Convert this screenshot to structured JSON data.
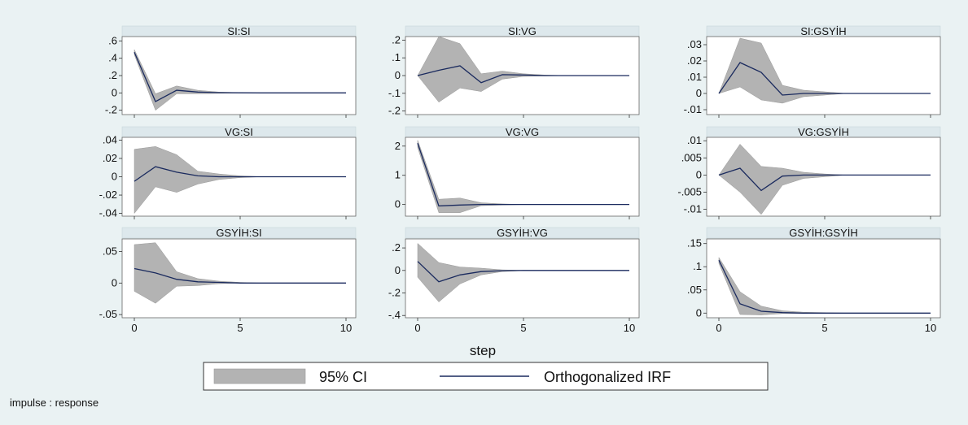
{
  "chart_data": {
    "type": "line",
    "xlabel": "step",
    "note": "impulse : response",
    "legend": {
      "position": "bottom",
      "items": [
        {
          "label": "95% CI",
          "kind": "area",
          "color": "#b3b3b3"
        },
        {
          "label": "Orthogonalized IRF",
          "kind": "line",
          "color": "#1a2a5e"
        }
      ]
    },
    "colors": {
      "ci_fill": "#b3b3b3",
      "irf_line": "#1a2a5e",
      "title_strip": "#dde8ec",
      "background": "#eaf2f3"
    },
    "x_ticks": [
      0,
      5,
      10
    ],
    "xlim": [
      0,
      10
    ],
    "panels": [
      {
        "title": "SI:SI",
        "ylim": [
          -0.25,
          0.65
        ],
        "y_ticks": [
          -0.2,
          0,
          0.2,
          0.4,
          0.6
        ],
        "y_tick_labels": [
          "-.2",
          "0",
          ".2",
          ".4",
          ".6"
        ],
        "x": [
          0,
          1,
          2,
          3,
          4,
          5,
          6,
          7,
          8,
          9,
          10
        ],
        "irf": [
          0.47,
          -0.1,
          0.03,
          0.01,
          0.003,
          0.001,
          0,
          0,
          0,
          0,
          0
        ],
        "lower": [
          0.44,
          -0.2,
          -0.01,
          -0.01,
          -0.005,
          -0.002,
          0,
          0,
          0,
          0,
          0
        ],
        "upper": [
          0.5,
          -0.01,
          0.08,
          0.03,
          0.01,
          0.003,
          0,
          0,
          0,
          0,
          0
        ]
      },
      {
        "title": "SI:VG",
        "ylim": [
          -0.22,
          0.22
        ],
        "y_ticks": [
          -0.2,
          -0.1,
          0,
          0.1,
          0.2
        ],
        "y_tick_labels": [
          "-.2",
          "-.1",
          "0",
          ".1",
          ".2"
        ],
        "x": [
          0,
          1,
          2,
          3,
          4,
          5,
          6,
          7,
          8,
          9,
          10
        ],
        "irf": [
          0,
          0.03,
          0.055,
          -0.04,
          0.005,
          0.003,
          0,
          0,
          0,
          0,
          0
        ],
        "lower": [
          0,
          -0.15,
          -0.07,
          -0.09,
          -0.02,
          -0.005,
          -0.002,
          0,
          0,
          0,
          0
        ],
        "upper": [
          0,
          0.22,
          0.18,
          0.01,
          0.025,
          0.01,
          0.003,
          0,
          0,
          0,
          0
        ]
      },
      {
        "title": "SI:GSYİH",
        "ylim": [
          -0.013,
          0.035
        ],
        "y_ticks": [
          -0.01,
          0,
          0.01,
          0.02,
          0.03
        ],
        "y_tick_labels": [
          "-.01",
          "0",
          ".01",
          ".02",
          ".03"
        ],
        "x": [
          0,
          1,
          2,
          3,
          4,
          5,
          6,
          7,
          8,
          9,
          10
        ],
        "irf": [
          0,
          0.019,
          0.013,
          -0.001,
          0,
          0,
          0,
          0,
          0,
          0,
          0
        ],
        "lower": [
          0,
          0.004,
          -0.004,
          -0.006,
          -0.002,
          -0.001,
          0,
          0,
          0,
          0,
          0
        ],
        "upper": [
          0,
          0.034,
          0.031,
          0.005,
          0.002,
          0.001,
          0,
          0,
          0,
          0,
          0
        ]
      },
      {
        "title": "VG:SI",
        "ylim": [
          -0.043,
          0.043
        ],
        "y_ticks": [
          -0.04,
          -0.02,
          0,
          0.02,
          0.04
        ],
        "y_tick_labels": [
          "-.04",
          "-.02",
          "0",
          ".02",
          ".04"
        ],
        "x": [
          0,
          1,
          2,
          3,
          4,
          5,
          6,
          7,
          8,
          9,
          10
        ],
        "irf": [
          -0.005,
          0.011,
          0.005,
          0.001,
          0,
          0,
          0,
          0,
          0,
          0,
          0
        ],
        "lower": [
          -0.04,
          -0.011,
          -0.017,
          -0.008,
          -0.003,
          -0.001,
          0,
          0,
          0,
          0,
          0
        ],
        "upper": [
          0.03,
          0.033,
          0.024,
          0.006,
          0.003,
          0.001,
          0,
          0,
          0,
          0,
          0
        ]
      },
      {
        "title": "VG:VG",
        "ylim": [
          -0.4,
          2.3
        ],
        "y_ticks": [
          0,
          1,
          2
        ],
        "y_tick_labels": [
          "0",
          "1",
          "2"
        ],
        "x": [
          0,
          1,
          2,
          3,
          4,
          5,
          6,
          7,
          8,
          9,
          10
        ],
        "irf": [
          2.1,
          -0.05,
          -0.02,
          0,
          0,
          0,
          0,
          0,
          0,
          0,
          0
        ],
        "lower": [
          1.95,
          -0.28,
          -0.28,
          -0.04,
          -0.02,
          0,
          0,
          0,
          0,
          0,
          0
        ],
        "upper": [
          2.2,
          0.18,
          0.22,
          0.06,
          0.02,
          0,
          0,
          0,
          0,
          0,
          0
        ]
      },
      {
        "title": "VG:GSYİH",
        "ylim": [
          -0.012,
          0.011
        ],
        "y_ticks": [
          -0.01,
          -0.005,
          0,
          0.005,
          0.01
        ],
        "y_tick_labels": [
          "-.01",
          "-.005",
          "0",
          ".005",
          ".01"
        ],
        "x": [
          0,
          1,
          2,
          3,
          4,
          5,
          6,
          7,
          8,
          9,
          10
        ],
        "irf": [
          0,
          0.002,
          -0.0045,
          -0.0003,
          0,
          0,
          0,
          0,
          0,
          0,
          0
        ],
        "lower": [
          0,
          -0.005,
          -0.0115,
          -0.003,
          -0.001,
          -0.0005,
          0,
          0,
          0,
          0,
          0
        ],
        "upper": [
          0,
          0.009,
          0.0025,
          0.002,
          0.0008,
          0.0003,
          0,
          0,
          0,
          0,
          0
        ]
      },
      {
        "title": "GSYİH:SI",
        "ylim": [
          -0.055,
          0.07
        ],
        "y_ticks": [
          -0.05,
          0,
          0.05
        ],
        "y_tick_labels": [
          "-.05",
          "0",
          ".05"
        ],
        "x": [
          0,
          1,
          2,
          3,
          4,
          5,
          6,
          7,
          8,
          9,
          10
        ],
        "irf": [
          0.023,
          0.016,
          0.006,
          0.002,
          0.001,
          0,
          0,
          0,
          0,
          0,
          0
        ],
        "lower": [
          -0.013,
          -0.032,
          -0.005,
          -0.004,
          -0.001,
          0,
          0,
          0,
          0,
          0,
          0
        ],
        "upper": [
          0.061,
          0.064,
          0.018,
          0.007,
          0.003,
          0.001,
          0,
          0,
          0,
          0,
          0
        ]
      },
      {
        "title": "GSYİH:VG",
        "ylim": [
          -0.42,
          0.28
        ],
        "y_ticks": [
          -0.4,
          -0.2,
          0,
          0.2
        ],
        "y_tick_labels": [
          "-.4",
          "-.2",
          "0",
          ".2"
        ],
        "x": [
          0,
          1,
          2,
          3,
          4,
          5,
          6,
          7,
          8,
          9,
          10
        ],
        "irf": [
          0.08,
          -0.1,
          -0.04,
          -0.01,
          -0.002,
          0,
          0,
          0,
          0,
          0,
          0
        ],
        "lower": [
          -0.06,
          -0.28,
          -0.12,
          -0.04,
          -0.01,
          -0.002,
          0,
          0,
          0,
          0,
          0
        ],
        "upper": [
          0.24,
          0.07,
          0.03,
          0.02,
          0.005,
          0.001,
          0,
          0,
          0,
          0,
          0
        ]
      },
      {
        "title": "GSYİH:GSYİH",
        "ylim": [
          -0.01,
          0.16
        ],
        "y_ticks": [
          0,
          0.05,
          0.1,
          0.15
        ],
        "y_tick_labels": [
          "0",
          ".05",
          ".1",
          ".15"
        ],
        "x": [
          0,
          1,
          2,
          3,
          4,
          5,
          6,
          7,
          8,
          9,
          10
        ],
        "irf": [
          0.114,
          0.02,
          0.004,
          0.001,
          0,
          0,
          0,
          0,
          0,
          0,
          0
        ],
        "lower": [
          0.107,
          -0.003,
          -0.004,
          -0.001,
          -0.001,
          0,
          0,
          0,
          0,
          0,
          0
        ],
        "upper": [
          0.12,
          0.046,
          0.015,
          0.005,
          0.002,
          0.001,
          0,
          0,
          0,
          0,
          0
        ]
      }
    ]
  }
}
